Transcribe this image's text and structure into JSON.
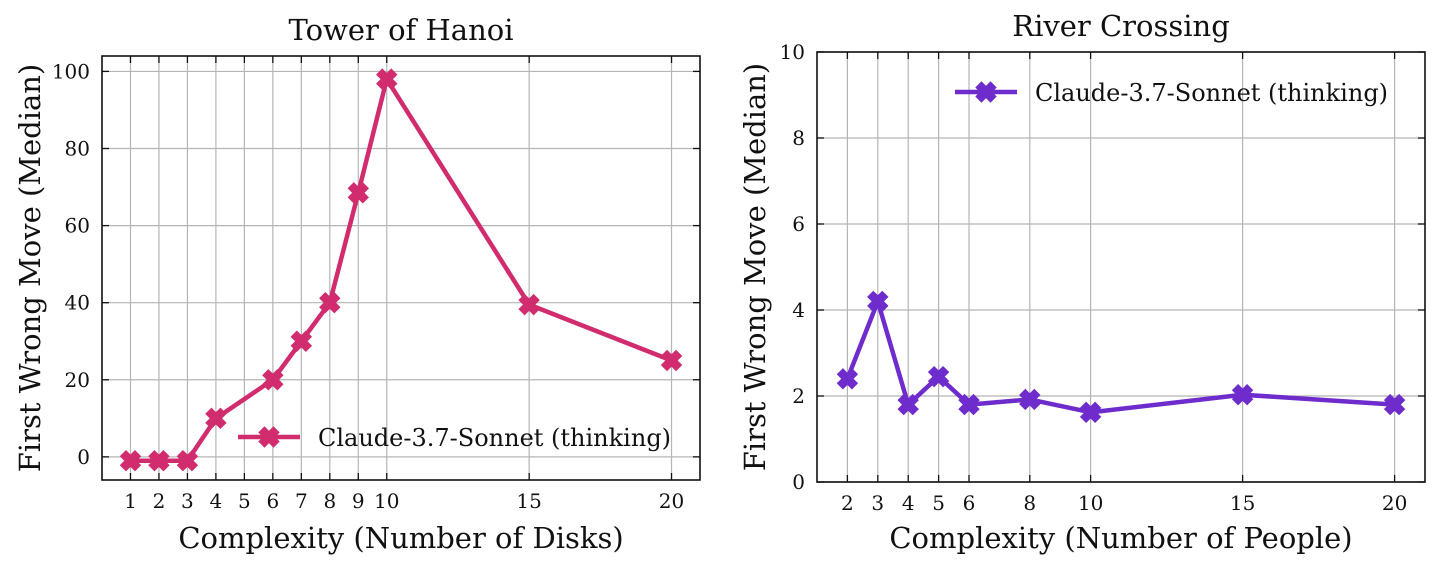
{
  "chart_data": [
    {
      "type": "line",
      "title": "Tower of Hanoi",
      "xlabel": "Complexity (Number of Disks)",
      "ylabel": "First Wrong Move (Median)",
      "xlim": [
        0,
        21
      ],
      "ylim": [
        -6,
        104
      ],
      "xticks": [
        1,
        2,
        3,
        4,
        5,
        6,
        7,
        8,
        9,
        10,
        15,
        20
      ],
      "yticks": [
        0,
        20,
        40,
        60,
        80,
        100
      ],
      "grid": true,
      "legend_position": "lower-right",
      "series": [
        {
          "name": "Claude-3.7-Sonnet (thinking)",
          "color": "#d02c6e",
          "marker": "X",
          "x": [
            1,
            2,
            3,
            4,
            6,
            7,
            8,
            9,
            10,
            15,
            20
          ],
          "y": [
            -1,
            -1,
            -1,
            10,
            20,
            30,
            40,
            68.5,
            98,
            39.5,
            25
          ]
        }
      ]
    },
    {
      "type": "line",
      "title": "River Crossing",
      "xlabel": "Complexity (Number of People)",
      "ylabel": "First Wrong Move (Median)",
      "xlim": [
        1,
        21
      ],
      "ylim": [
        0,
        10
      ],
      "xticks": [
        2,
        3,
        4,
        5,
        6,
        8,
        10,
        15,
        20
      ],
      "yticks": [
        0,
        2,
        4,
        6,
        8,
        10
      ],
      "grid": true,
      "legend_position": "upper-right",
      "series": [
        {
          "name": "Claude-3.7-Sonnet (thinking)",
          "color": "#6f2ccc",
          "marker": "X",
          "x": [
            2,
            3,
            4,
            5,
            6,
            8,
            10,
            15,
            20
          ],
          "y": [
            2.4,
            4.2,
            1.8,
            2.45,
            1.8,
            1.92,
            1.62,
            2.03,
            1.8
          ]
        }
      ]
    }
  ]
}
